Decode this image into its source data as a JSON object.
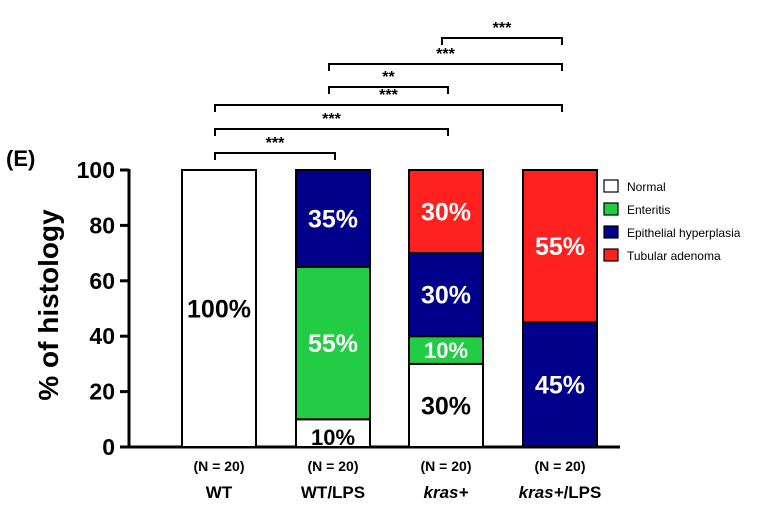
{
  "panel_label": "(E)",
  "chart_data": {
    "type": "bar",
    "stacked": true,
    "title": "",
    "xlabel": "",
    "ylabel": "% of histology",
    "ylim": [
      0,
      100
    ],
    "yticks": [
      0,
      20,
      40,
      60,
      80,
      100
    ],
    "grid": false,
    "legend_position": "right",
    "categories": [
      {
        "name": "WT",
        "italic": false,
        "n_label": "(N = 20)"
      },
      {
        "name": "WT/LPS",
        "italic": false,
        "n_label": "(N = 20)"
      },
      {
        "name": "kras+",
        "italic": true,
        "n_label": "(N = 20)"
      },
      {
        "name": "kras+/LPS",
        "italic_part": "kras+",
        "plain_part": "/LPS",
        "n_label": "(N = 20)"
      }
    ],
    "series": [
      {
        "name": "Normal",
        "color": "#ffffff",
        "values": [
          100,
          10,
          30,
          0
        ],
        "labels": [
          "100%",
          "10%",
          "30%",
          ""
        ],
        "label_color": "#000000"
      },
      {
        "name": "Enteritis",
        "color": "#22cc44",
        "values": [
          0,
          55,
          10,
          0
        ],
        "labels": [
          "",
          "55%",
          "10%",
          ""
        ],
        "label_color": "#ffffff"
      },
      {
        "name": "Epithelial hyperplasia",
        "color": "#00008b",
        "values": [
          0,
          35,
          30,
          45
        ],
        "labels": [
          "",
          "35%",
          "30%",
          "45%"
        ],
        "label_color": "#ffffff"
      },
      {
        "name": "Tubular adenoma",
        "color": "#ff2020",
        "values": [
          0,
          0,
          30,
          55
        ],
        "labels": [
          "",
          "",
          "30%",
          "55%"
        ],
        "label_color": "#ffffff"
      }
    ],
    "significance": [
      {
        "from": 0,
        "to": 1,
        "label": "***"
      },
      {
        "from": 0,
        "to": 2,
        "label": "***"
      },
      {
        "from": 0,
        "to": 3,
        "label": "***"
      },
      {
        "from": 1,
        "to": 2,
        "label": "**"
      },
      {
        "from": 1,
        "to": 3,
        "label": "***"
      },
      {
        "from": 2,
        "to": 3,
        "label": "***"
      }
    ]
  }
}
